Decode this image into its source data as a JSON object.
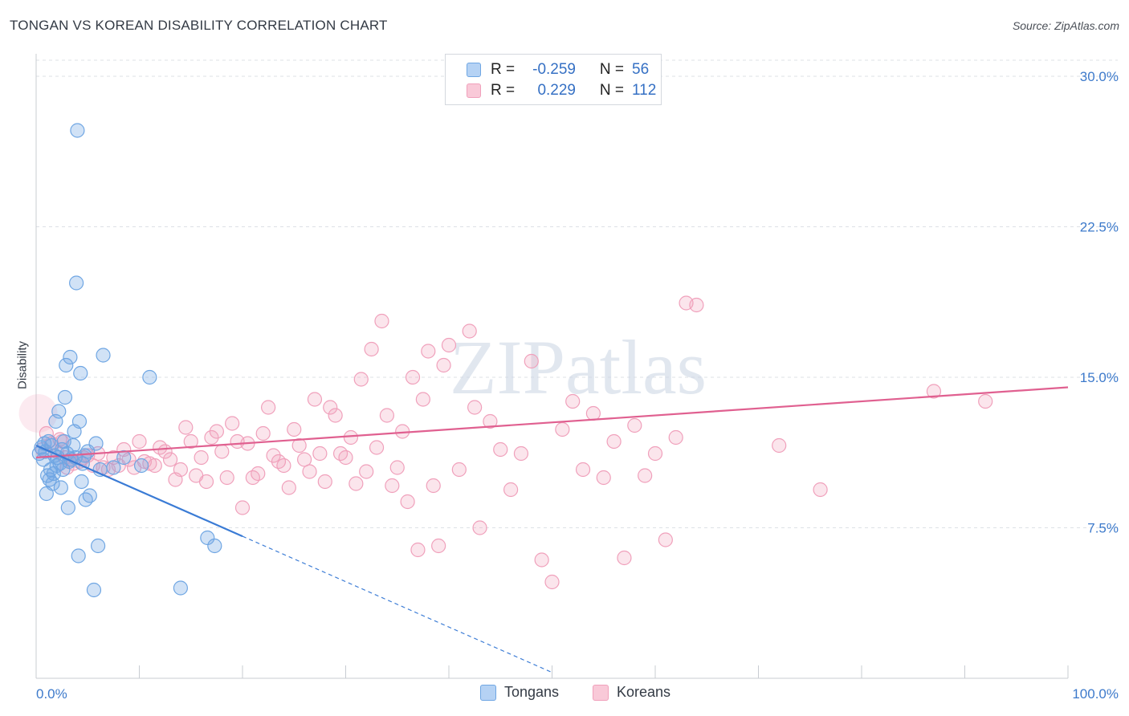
{
  "title": "TONGAN VS KOREAN DISABILITY CORRELATION CHART",
  "source": "Source: ZipAtlas.com",
  "watermark": "ZIPatlas",
  "chart_data": {
    "type": "scatter",
    "title": "TONGAN VS KOREAN DISABILITY CORRELATION CHART",
    "xlabel": "",
    "ylabel": "Disability",
    "xlim": [
      0,
      100
    ],
    "ylim": [
      0,
      30.8
    ],
    "x_tick_labels": [
      "0.0%",
      "100.0%"
    ],
    "y_ticks": [
      7.5,
      15.0,
      22.5,
      30.0
    ],
    "y_tick_labels": [
      "7.5%",
      "15.0%",
      "22.5%",
      "30.0%"
    ],
    "grid": true,
    "legend_position": "top-center",
    "series": [
      {
        "name": "Tongans",
        "color": "#6fa6e3",
        "line_color": "#3a7bd5",
        "R": "-0.259",
        "N": "56",
        "trend": {
          "x_start": 0.0,
          "y_start": 11.6,
          "x_solid_end": 20.0,
          "x_end": 50.0,
          "slope": -0.2262
        },
        "points": [
          [
            0.3,
            11.2
          ],
          [
            0.5,
            11.5
          ],
          [
            0.7,
            10.9
          ],
          [
            0.8,
            11.7
          ],
          [
            0.9,
            11.3
          ],
          [
            1.0,
            9.2
          ],
          [
            1.1,
            10.1
          ],
          [
            1.2,
            11.8
          ],
          [
            1.3,
            9.9
          ],
          [
            1.4,
            10.4
          ],
          [
            1.5,
            11.6
          ],
          [
            1.6,
            9.7
          ],
          [
            1.7,
            10.2
          ],
          [
            1.8,
            11.1
          ],
          [
            1.9,
            12.8
          ],
          [
            2.0,
            10.6
          ],
          [
            2.1,
            11.0
          ],
          [
            2.2,
            13.3
          ],
          [
            2.3,
            10.7
          ],
          [
            2.4,
            9.5
          ],
          [
            2.5,
            11.4
          ],
          [
            2.6,
            10.4
          ],
          [
            2.7,
            11.8
          ],
          [
            2.8,
            14.0
          ],
          [
            2.9,
            15.6
          ],
          [
            3.0,
            11.2
          ],
          [
            3.1,
            8.5
          ],
          [
            3.2,
            10.8
          ],
          [
            3.3,
            16.0
          ],
          [
            3.4,
            10.9
          ],
          [
            3.6,
            11.6
          ],
          [
            3.7,
            12.3
          ],
          [
            3.8,
            11.0
          ],
          [
            3.9,
            19.7
          ],
          [
            4.0,
            27.3
          ],
          [
            4.1,
            6.1
          ],
          [
            4.2,
            12.8
          ],
          [
            4.3,
            15.2
          ],
          [
            4.4,
            9.8
          ],
          [
            4.5,
            10.7
          ],
          [
            4.7,
            11.1
          ],
          [
            4.8,
            8.9
          ],
          [
            5.0,
            11.3
          ],
          [
            5.2,
            9.1
          ],
          [
            5.6,
            4.4
          ],
          [
            5.8,
            11.7
          ],
          [
            6.0,
            6.6
          ],
          [
            6.2,
            10.4
          ],
          [
            6.5,
            16.1
          ],
          [
            7.5,
            10.5
          ],
          [
            8.5,
            11.0
          ],
          [
            10.2,
            10.6
          ],
          [
            11.0,
            15.0
          ],
          [
            14.0,
            4.5
          ],
          [
            16.6,
            7.0
          ],
          [
            17.3,
            6.6
          ]
        ]
      },
      {
        "name": "Koreans",
        "color": "#f0a0bb",
        "line_color": "#e06090",
        "R": "0.229",
        "N": "112",
        "trend": {
          "x_start": 0.0,
          "y_start": 11.0,
          "x_end": 100.0,
          "y_end": 14.5
        },
        "points": [
          [
            0.6,
            11.4
          ],
          [
            1.0,
            12.2
          ],
          [
            1.5,
            11.7
          ],
          [
            2.0,
            11.3
          ],
          [
            2.3,
            11.9
          ],
          [
            2.5,
            11.8
          ],
          [
            2.8,
            11.0
          ],
          [
            3.0,
            10.5
          ],
          [
            3.3,
            10.9
          ],
          [
            3.6,
            10.7
          ],
          [
            4.2,
            10.8
          ],
          [
            4.6,
            11.0
          ],
          [
            5.0,
            11.1
          ],
          [
            5.5,
            10.6
          ],
          [
            6.0,
            11.2
          ],
          [
            6.5,
            10.5
          ],
          [
            7.0,
            10.4
          ],
          [
            7.5,
            11.0
          ],
          [
            8.0,
            10.6
          ],
          [
            8.5,
            11.4
          ],
          [
            9.0,
            10.9
          ],
          [
            9.5,
            10.5
          ],
          [
            10.0,
            11.8
          ],
          [
            10.5,
            10.8
          ],
          [
            11.0,
            10.7
          ],
          [
            11.5,
            10.6
          ],
          [
            12.0,
            11.5
          ],
          [
            12.5,
            11.3
          ],
          [
            13.0,
            10.9
          ],
          [
            13.5,
            9.9
          ],
          [
            14.0,
            10.4
          ],
          [
            14.5,
            12.5
          ],
          [
            15.0,
            11.8
          ],
          [
            15.5,
            10.1
          ],
          [
            16.0,
            11.0
          ],
          [
            16.5,
            9.8
          ],
          [
            17.0,
            12.0
          ],
          [
            17.5,
            12.3
          ],
          [
            18.0,
            11.3
          ],
          [
            18.5,
            10.0
          ],
          [
            19.0,
            12.7
          ],
          [
            19.5,
            11.8
          ],
          [
            20.0,
            8.5
          ],
          [
            20.5,
            11.7
          ],
          [
            21.0,
            10.0
          ],
          [
            21.5,
            10.2
          ],
          [
            22.0,
            12.2
          ],
          [
            22.5,
            13.5
          ],
          [
            23.0,
            11.1
          ],
          [
            23.5,
            10.8
          ],
          [
            24.0,
            10.6
          ],
          [
            24.5,
            9.5
          ],
          [
            25.0,
            12.4
          ],
          [
            25.5,
            11.6
          ],
          [
            26.0,
            10.9
          ],
          [
            26.5,
            10.3
          ],
          [
            27.0,
            13.9
          ],
          [
            27.5,
            11.2
          ],
          [
            28.0,
            9.8
          ],
          [
            28.5,
            13.5
          ],
          [
            29.0,
            13.1
          ],
          [
            29.5,
            11.2
          ],
          [
            30.0,
            11.0
          ],
          [
            30.5,
            12.0
          ],
          [
            31.0,
            9.7
          ],
          [
            31.5,
            14.9
          ],
          [
            32.0,
            10.3
          ],
          [
            32.5,
            16.4
          ],
          [
            33.0,
            11.5
          ],
          [
            33.5,
            17.8
          ],
          [
            34.0,
            13.1
          ],
          [
            34.5,
            9.6
          ],
          [
            35.0,
            10.5
          ],
          [
            35.5,
            12.3
          ],
          [
            36.0,
            8.8
          ],
          [
            36.5,
            15.0
          ],
          [
            37.0,
            6.4
          ],
          [
            37.5,
            13.9
          ],
          [
            38.0,
            16.3
          ],
          [
            38.5,
            9.6
          ],
          [
            39.0,
            6.6
          ],
          [
            39.5,
            15.6
          ],
          [
            40.0,
            16.6
          ],
          [
            41.0,
            10.4
          ],
          [
            42.0,
            17.3
          ],
          [
            42.5,
            13.5
          ],
          [
            43.0,
            7.5
          ],
          [
            44.0,
            12.8
          ],
          [
            45.0,
            11.4
          ],
          [
            46.0,
            9.4
          ],
          [
            47.0,
            11.2
          ],
          [
            48.0,
            15.8
          ],
          [
            49.0,
            5.9
          ],
          [
            50.0,
            4.8
          ],
          [
            51.0,
            12.4
          ],
          [
            52.0,
            13.8
          ],
          [
            53.0,
            10.4
          ],
          [
            54.0,
            13.2
          ],
          [
            55.0,
            10.0
          ],
          [
            56.0,
            11.8
          ],
          [
            57.0,
            6.0
          ],
          [
            58.0,
            12.6
          ],
          [
            59.0,
            10.1
          ],
          [
            60.0,
            11.2
          ],
          [
            61.0,
            6.9
          ],
          [
            62.0,
            12.0
          ],
          [
            63.0,
            18.7
          ],
          [
            64.0,
            18.6
          ],
          [
            72.0,
            11.6
          ],
          [
            76.0,
            9.4
          ],
          [
            87.0,
            14.3
          ],
          [
            92.0,
            13.8
          ]
        ]
      }
    ]
  },
  "legend": {
    "rows": [
      {
        "r_label": "R =",
        "r_value": "-0.259",
        "n_label": "N =",
        "n_value": "56"
      },
      {
        "r_label": "R =",
        "r_value": "0.229",
        "n_label": "N =",
        "n_value": "112"
      }
    ]
  },
  "bottom_legend": {
    "tongans": "Tongans",
    "koreans": "Koreans"
  }
}
